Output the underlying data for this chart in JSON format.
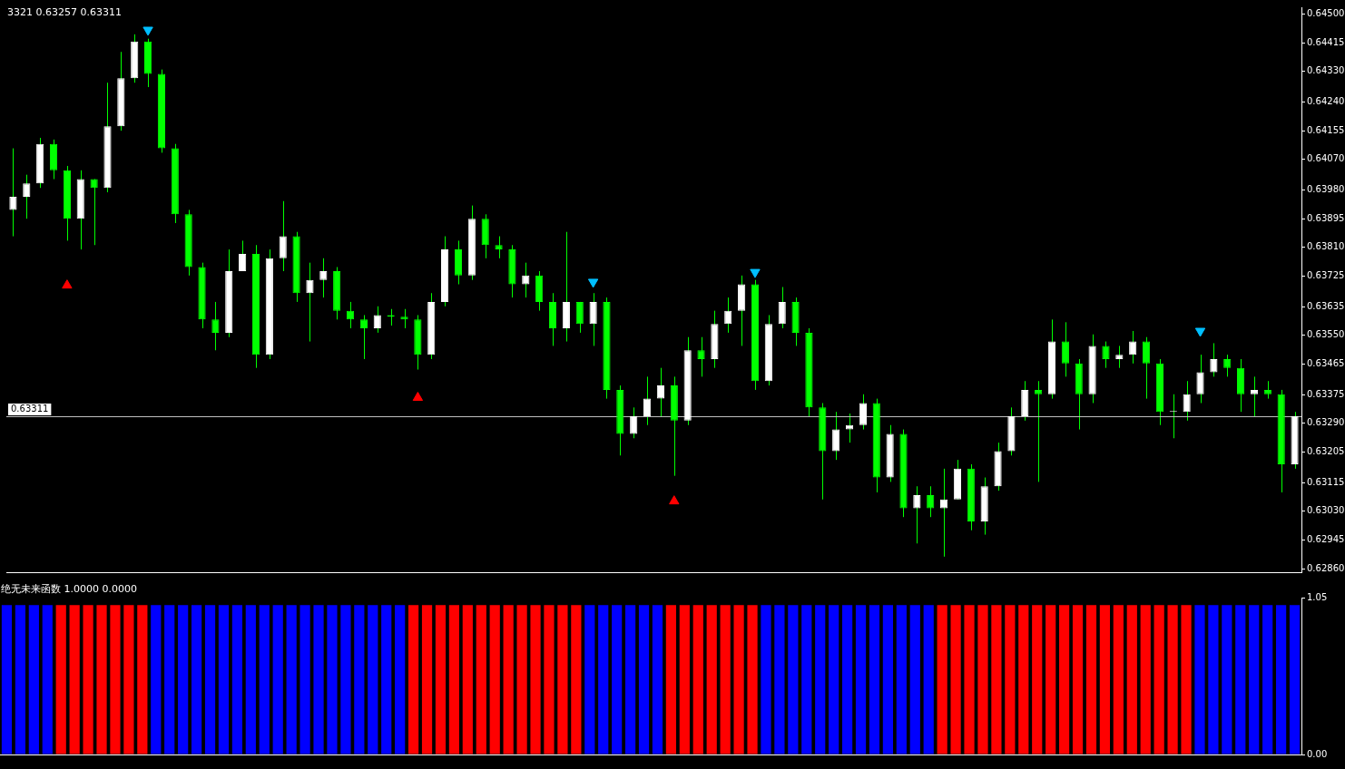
{
  "chart_data": [
    {
      "type": "candlestick",
      "annotations": [
        "3321 0.63257 0.63311"
      ],
      "color": "#00ff00",
      "colors": [
        "#ffffff",
        "#ffffff",
        "#ffffff",
        "#00ff00",
        "#00ff00",
        "#ffffff",
        "#00ff00",
        "#ffffff",
        "#ffffff",
        "#ffffff",
        "#00ff00",
        "#00ff00",
        "#00ff00",
        "#00ff00",
        "#00ff00",
        "#00ff00",
        "#ffffff",
        "#ffffff",
        "#00ff00",
        "#ffffff",
        "#ffffff",
        "#00ff00",
        "#ffffff",
        "#ffffff",
        "#00ff00",
        "#00ff00",
        "#00ff00",
        "#ffffff",
        "#00ff00",
        "#00ff00",
        "#00ff00",
        "#ffffff",
        "#ffffff",
        "#00ff00",
        "#ffffff",
        "#00ff00",
        "#00ff00",
        "#00ff00",
        "#ffffff",
        "#00ff00",
        "#00ff00",
        "#ffffff",
        "#00ff00",
        "#ffffff",
        "#00ff00",
        "#00ff00",
        "#ffffff",
        "#ffffff",
        "#ffffff",
        "#00ff00",
        "#ffffff",
        "#00ff00",
        "#ffffff",
        "#ffffff",
        "#ffffff",
        "#00ff00",
        "#ffffff",
        "#ffffff",
        "#00ff00",
        "#00ff00",
        "#00ff00",
        "#ffffff",
        "#ffffff",
        "#ffffff",
        "#00ff00",
        "#ffffff",
        "#00ff00",
        "#ffffff",
        "#00ff00",
        "#ffffff",
        "#ffffff",
        "#00ff00",
        "#ffffff",
        "#ffffff",
        "#ffffff",
        "#ffffff",
        "#00ff00",
        "#ffffff",
        "#00ff00",
        "#00ff00",
        "#ffffff",
        "#00ff00",
        "#ffffff",
        "#ffffff",
        "#00ff00",
        "#00ff00",
        "#ffffff",
        "#ffffff",
        "#ffffff",
        "#ffffff",
        "#00ff00",
        "#00ff00",
        "#ffffff",
        "#00ff00",
        "#00ff00",
        "#ffffff"
      ],
      "categories": [
        null,
        null,
        null,
        null,
        null,
        null,
        null,
        null,
        null,
        null,
        null,
        null,
        null,
        null,
        null,
        null,
        null,
        null,
        null,
        null,
        null,
        null,
        null,
        null,
        null,
        null,
        null,
        null,
        null,
        null,
        null,
        null,
        null,
        null,
        null,
        null,
        null,
        null,
        null,
        null,
        null,
        null,
        null,
        null,
        null,
        null,
        null,
        null,
        null,
        null,
        null,
        null,
        null,
        null,
        null,
        null,
        null,
        null,
        null,
        null,
        null,
        null,
        null,
        null,
        null,
        null,
        null,
        null,
        null,
        null,
        null,
        null,
        null,
        null,
        null,
        null,
        null,
        null,
        null,
        null,
        null,
        null,
        null,
        null,
        null,
        null,
        null,
        null,
        null,
        null,
        null,
        null,
        null,
        null,
        null,
        null
      ],
      "ohlc": [
        [
          0.63921,
          0.64103,
          0.63843,
          0.6396
        ],
        [
          0.6396,
          0.64025,
          0.63895,
          0.63999
        ],
        [
          0.63999,
          0.64134,
          0.63986,
          0.64116
        ],
        [
          0.64116,
          0.64129,
          0.64012,
          0.64038
        ],
        [
          0.64038,
          0.64051,
          0.6383,
          0.63895
        ],
        [
          0.63895,
          0.64038,
          0.63804,
          0.64012
        ],
        [
          0.64012,
          0.64012,
          0.63817,
          0.63986
        ],
        [
          0.63986,
          0.64297,
          0.63973,
          0.64168
        ],
        [
          0.64168,
          0.64388,
          0.64155,
          0.6431
        ],
        [
          0.6431,
          0.6444,
          0.64297,
          0.64419
        ],
        [
          0.64419,
          0.64427,
          0.64284,
          0.64323
        ],
        [
          0.64323,
          0.64336,
          0.6409,
          0.64103
        ],
        [
          0.64103,
          0.64116,
          0.63882,
          0.63908
        ],
        [
          0.63908,
          0.63921,
          0.63727,
          0.63752
        ],
        [
          0.63752,
          0.63765,
          0.63571,
          0.63597
        ],
        [
          0.63597,
          0.63649,
          0.63506,
          0.63558
        ],
        [
          0.63558,
          0.63804,
          0.63545,
          0.6374
        ],
        [
          0.6374,
          0.6383,
          0.6374,
          0.63791
        ],
        [
          0.63791,
          0.63817,
          0.63454,
          0.63493
        ],
        [
          0.63493,
          0.63804,
          0.6348,
          0.63778
        ],
        [
          0.63778,
          0.63947,
          0.6374,
          0.63843
        ],
        [
          0.63843,
          0.63856,
          0.63649,
          0.63675
        ],
        [
          0.63675,
          0.63765,
          0.63532,
          0.63714
        ],
        [
          0.63714,
          0.63778,
          0.63662,
          0.6374
        ],
        [
          0.6374,
          0.63752,
          0.63597,
          0.63623
        ],
        [
          0.63623,
          0.63649,
          0.63571,
          0.63597
        ],
        [
          0.63597,
          0.6361,
          0.6348,
          0.63571
        ],
        [
          0.63571,
          0.63636,
          0.63558,
          0.6361
        ],
        [
          0.6361,
          0.63628,
          0.63579,
          0.63605
        ],
        [
          0.63605,
          0.63628,
          0.63571,
          0.63597
        ],
        [
          0.63597,
          0.6361,
          0.63449,
          0.63493
        ],
        [
          0.63493,
          0.63675,
          0.6348,
          0.63649
        ],
        [
          0.63649,
          0.63843,
          0.63636,
          0.63804
        ],
        [
          0.63804,
          0.6383,
          0.63701,
          0.63727
        ],
        [
          0.63727,
          0.63934,
          0.63714,
          0.63895
        ],
        [
          0.63895,
          0.63908,
          0.63778,
          0.63817
        ],
        [
          0.63817,
          0.63843,
          0.63778,
          0.63804
        ],
        [
          0.63804,
          0.63817,
          0.63662,
          0.63701
        ],
        [
          0.63701,
          0.63765,
          0.63662,
          0.63727
        ],
        [
          0.63727,
          0.6374,
          0.63623,
          0.63649
        ],
        [
          0.63649,
          0.63675,
          0.63519,
          0.63571
        ],
        [
          0.63571,
          0.63856,
          0.63532,
          0.63649
        ],
        [
          0.63649,
          0.63649,
          0.63558,
          0.63584
        ],
        [
          0.63584,
          0.63675,
          0.63519,
          0.63649
        ],
        [
          0.63649,
          0.63662,
          0.63363,
          0.63389
        ],
        [
          0.63389,
          0.63402,
          0.63195,
          0.63259
        ],
        [
          0.63259,
          0.63337,
          0.63246,
          0.63311
        ],
        [
          0.63311,
          0.63428,
          0.63285,
          0.63363
        ],
        [
          0.63363,
          0.63454,
          0.63311,
          0.63402
        ],
        [
          0.63402,
          0.63428,
          0.63135,
          0.63298
        ],
        [
          0.63298,
          0.63545,
          0.63285,
          0.63506
        ],
        [
          0.63506,
          0.63545,
          0.63428,
          0.6348
        ],
        [
          0.6348,
          0.63623,
          0.63454,
          0.63584
        ],
        [
          0.63584,
          0.63662,
          0.63558,
          0.63623
        ],
        [
          0.63623,
          0.63727,
          0.63519,
          0.63701
        ],
        [
          0.63701,
          0.63714,
          0.63389,
          0.63415
        ],
        [
          0.63415,
          0.6361,
          0.63402,
          0.63584
        ],
        [
          0.63584,
          0.63693,
          0.63571,
          0.63649
        ],
        [
          0.63649,
          0.63662,
          0.63519,
          0.63558
        ],
        [
          0.63558,
          0.63571,
          0.63311,
          0.63337
        ],
        [
          0.63337,
          0.6335,
          0.63065,
          0.63208
        ],
        [
          0.63208,
          0.63324,
          0.63182,
          0.63272
        ],
        [
          0.63272,
          0.63319,
          0.63233,
          0.63285
        ],
        [
          0.63285,
          0.63376,
          0.63272,
          0.6335
        ],
        [
          0.6335,
          0.63363,
          0.63086,
          0.6313
        ],
        [
          0.6313,
          0.63285,
          0.63117,
          0.63259
        ],
        [
          0.63259,
          0.63272,
          0.63013,
          0.63039
        ],
        [
          0.63039,
          0.63104,
          0.62935,
          0.63078
        ],
        [
          0.63078,
          0.63104,
          0.63013,
          0.63039
        ],
        [
          0.63039,
          0.63156,
          0.62896,
          0.63065
        ],
        [
          0.63065,
          0.63182,
          0.63065,
          0.63156
        ],
        [
          0.63156,
          0.63169,
          0.62974,
          0.63
        ],
        [
          0.63,
          0.6313,
          0.62961,
          0.63104
        ],
        [
          0.63104,
          0.63233,
          0.63091,
          0.63208
        ],
        [
          0.63208,
          0.63337,
          0.63195,
          0.63311
        ],
        [
          0.63311,
          0.63415,
          0.63298,
          0.63389
        ],
        [
          0.63389,
          0.63415,
          0.63117,
          0.63376
        ],
        [
          0.63376,
          0.63597,
          0.63363,
          0.63532
        ],
        [
          0.63532,
          0.63589,
          0.63428,
          0.63467
        ],
        [
          0.63467,
          0.6348,
          0.63272,
          0.63376
        ],
        [
          0.63376,
          0.63553,
          0.6335,
          0.63519
        ],
        [
          0.63519,
          0.63532,
          0.63454,
          0.6348
        ],
        [
          0.6348,
          0.63519,
          0.63454,
          0.63493
        ],
        [
          0.63493,
          0.63563,
          0.63467,
          0.63532
        ],
        [
          0.63532,
          0.63545,
          0.63363,
          0.63467
        ],
        [
          0.63467,
          0.6348,
          0.63285,
          0.63324
        ],
        [
          0.63324,
          0.63376,
          0.63246,
          0.63324
        ],
        [
          0.63324,
          0.63415,
          0.63298,
          0.63376
        ],
        [
          0.63376,
          0.63493,
          0.6335,
          0.63441
        ],
        [
          0.63441,
          0.63527,
          0.63428,
          0.6348
        ],
        [
          0.6348,
          0.63493,
          0.63428,
          0.63454
        ],
        [
          0.63454,
          0.6348,
          0.63324,
          0.63376
        ],
        [
          0.63376,
          0.63428,
          0.63311,
          0.63389
        ],
        [
          0.63389,
          0.63415,
          0.63363,
          0.63376
        ],
        [
          0.63376,
          0.63389,
          0.63086,
          0.63169
        ],
        [
          0.63169,
          0.63324,
          0.63156,
          0.63311
        ]
      ],
      "series": [
        {
          "type": "scatter",
          "color": "#ff0000",
          "marker": "triangle",
          "values": [
            null,
            null,
            null,
            null,
            0.63698,
            null,
            null,
            null,
            null,
            null,
            null,
            null,
            null,
            null,
            null,
            null,
            null,
            null,
            null,
            null,
            null,
            null,
            null,
            null,
            null,
            null,
            null,
            null,
            null,
            null,
            0.63366,
            null,
            null,
            null,
            null,
            null,
            null,
            null,
            null,
            null,
            null,
            null,
            null,
            null,
            null,
            null,
            null,
            null,
            null,
            0.6306,
            null,
            null,
            null,
            null,
            null,
            null,
            null,
            null,
            null,
            null,
            null,
            null,
            null,
            null,
            null,
            null,
            null,
            null,
            null,
            null,
            null,
            null,
            null,
            null,
            null,
            null,
            null,
            null,
            null,
            null,
            null,
            null,
            null,
            null,
            null,
            null,
            null,
            null,
            null,
            null,
            null,
            null,
            null,
            null,
            null,
            null
          ]
        },
        {
          "type": "scatter",
          "color": "#00bfff",
          "marker": "triangle",
          "values": [
            null,
            null,
            null,
            null,
            null,
            null,
            null,
            null,
            null,
            null,
            0.64453,
            null,
            null,
            null,
            null,
            null,
            null,
            null,
            null,
            null,
            null,
            null,
            null,
            null,
            null,
            null,
            null,
            null,
            null,
            null,
            null,
            null,
            null,
            null,
            null,
            null,
            null,
            null,
            null,
            null,
            null,
            null,
            null,
            0.63708,
            null,
            null,
            null,
            null,
            null,
            null,
            null,
            null,
            null,
            null,
            null,
            0.63737,
            null,
            null,
            null,
            null,
            null,
            null,
            null,
            null,
            null,
            null,
            null,
            null,
            null,
            null,
            null,
            null,
            null,
            null,
            null,
            null,
            null,
            null,
            null,
            null,
            null,
            null,
            null,
            null,
            null,
            null,
            null,
            null,
            0.63563,
            null,
            null,
            null,
            null,
            null,
            null,
            null
          ]
        }
      ],
      "ylim": [
        0.6285,
        0.6452
      ],
      "yticks": [
        {
          "value": 0.645,
          "label": "0.64500"
        },
        {
          "value": 0.64415,
          "label": "0.64415"
        },
        {
          "value": 0.6433,
          "label": "0.64330"
        },
        {
          "value": 0.6424,
          "label": "0.64240"
        },
        {
          "value": 0.64155,
          "label": "0.64155"
        },
        {
          "value": 0.6407,
          "label": "0.64070"
        },
        {
          "value": 0.6398,
          "label": "0.63980"
        },
        {
          "value": 0.63895,
          "label": "0.63895"
        },
        {
          "value": 0.6381,
          "label": "0.63810"
        },
        {
          "value": 0.63725,
          "label": "0.63725"
        },
        {
          "value": 0.63635,
          "label": "0.63635"
        },
        {
          "value": 0.6355,
          "label": "0.63550"
        },
        {
          "value": 0.63465,
          "label": "0.63465"
        },
        {
          "value": 0.63375,
          "label": "0.63375"
        },
        {
          "value": 0.6329,
          "label": "0.63290"
        },
        {
          "value": 0.63205,
          "label": "0.63205"
        },
        {
          "value": 0.63115,
          "label": "0.63115"
        },
        {
          "value": 0.6303,
          "label": "0.63030"
        },
        {
          "value": 0.62945,
          "label": "0.62945"
        },
        {
          "value": 0.6286,
          "label": "0.62860"
        }
      ],
      "ref_lines": [
        {
          "axis": "y",
          "value": 0.63311,
          "label": "0.63311",
          "color": "#c0c0c0"
        }
      ]
    },
    {
      "type": "bar",
      "title": "绝无未来函数 1.0000 0.0000",
      "stacked": true,
      "categories": [
        null,
        null,
        null,
        null,
        null,
        null,
        null,
        null,
        null,
        null,
        null,
        null,
        null,
        null,
        null,
        null,
        null,
        null,
        null,
        null,
        null,
        null,
        null,
        null,
        null,
        null,
        null,
        null,
        null,
        null,
        null,
        null,
        null,
        null,
        null,
        null,
        null,
        null,
        null,
        null,
        null,
        null,
        null,
        null,
        null,
        null,
        null,
        null,
        null,
        null,
        null,
        null,
        null,
        null,
        null,
        null,
        null,
        null,
        null,
        null,
        null,
        null,
        null,
        null,
        null,
        null,
        null,
        null,
        null,
        null,
        null,
        null,
        null,
        null,
        null,
        null,
        null,
        null,
        null,
        null,
        null,
        null,
        null,
        null,
        null,
        null,
        null,
        null,
        null,
        null,
        null,
        null,
        null,
        null,
        null,
        null
      ],
      "series": [
        {
          "color": "#0000ff",
          "values": [
            1,
            1,
            1,
            1,
            null,
            null,
            null,
            null,
            null,
            null,
            null,
            1,
            1,
            1,
            1,
            1,
            1,
            1,
            1,
            1,
            1,
            1,
            1,
            1,
            1,
            1,
            1,
            1,
            1,
            1,
            null,
            null,
            null,
            null,
            null,
            null,
            null,
            null,
            null,
            null,
            null,
            null,
            null,
            1,
            1,
            1,
            1,
            1,
            1,
            null,
            null,
            null,
            null,
            null,
            null,
            null,
            1,
            1,
            1,
            1,
            1,
            1,
            1,
            1,
            1,
            1,
            1,
            1,
            1,
            null,
            null,
            null,
            null,
            null,
            null,
            null,
            null,
            null,
            null,
            null,
            null,
            null,
            null,
            null,
            null,
            null,
            null,
            null,
            1,
            1,
            1,
            1,
            1,
            1,
            1,
            1
          ]
        },
        {
          "color": "#ff0000",
          "values": [
            null,
            null,
            null,
            null,
            1,
            1,
            1,
            1,
            1,
            1,
            1,
            null,
            null,
            null,
            null,
            null,
            null,
            null,
            null,
            null,
            null,
            null,
            null,
            null,
            null,
            null,
            null,
            null,
            null,
            null,
            1,
            1,
            1,
            1,
            1,
            1,
            1,
            1,
            1,
            1,
            1,
            1,
            1,
            null,
            null,
            null,
            null,
            null,
            null,
            1,
            1,
            1,
            1,
            1,
            1,
            1,
            null,
            null,
            null,
            null,
            null,
            null,
            null,
            null,
            null,
            null,
            null,
            null,
            null,
            1,
            1,
            1,
            1,
            1,
            1,
            1,
            1,
            1,
            1,
            1,
            1,
            1,
            1,
            1,
            1,
            1,
            1,
            1,
            null,
            null,
            null,
            null,
            null,
            null,
            null,
            null
          ]
        }
      ],
      "ylim": [
        0,
        1.05
      ],
      "yticks": [
        {
          "value": 1.05,
          "label": "1.05"
        },
        {
          "value": 0,
          "label": "0.00"
        }
      ]
    }
  ]
}
